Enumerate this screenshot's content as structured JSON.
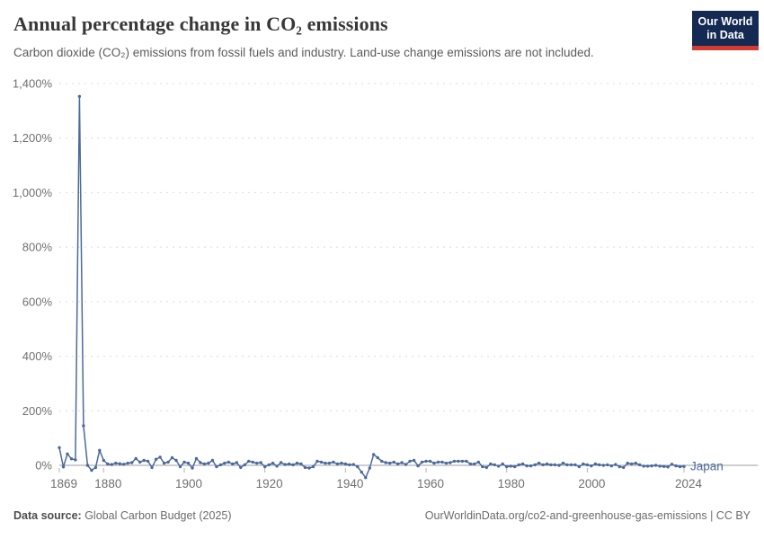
{
  "header": {
    "title": "Annual percentage change in CO₂ emissions",
    "subtitle": "Carbon dioxide (CO₂) emissions from fossil fuels and industry. Land-use change emissions are not included.",
    "logo": {
      "line1": "Our World",
      "line2": "in Data"
    }
  },
  "footer": {
    "source_label": "Data source:",
    "source_value": " Global Carbon Budget (2025)",
    "link": "OurWorldinData.org/co2-and-greenhouse-gas-emissions | CC BY"
  },
  "colors": {
    "series_blue": "#4c6a9c",
    "logo_navy": "#142a52",
    "logo_red": "#d13b32",
    "gridline": "#dcdcdc",
    "zero_axis": "#9e9e9e",
    "tick_text": "#707070"
  },
  "chart_data": {
    "type": "line",
    "title": "Annual percentage change in CO₂ emissions",
    "xlabel": "",
    "ylabel": "",
    "grid": true,
    "legend_position": "end-of-line",
    "ylim": [
      -60,
      1400
    ],
    "x_start": 1869,
    "x_end": 2024,
    "x_step": 1,
    "y_ticks": [
      {
        "value": 0,
        "label": "0%"
      },
      {
        "value": 200,
        "label": "200%"
      },
      {
        "value": 400,
        "label": "400%"
      },
      {
        "value": 600,
        "label": "600%"
      },
      {
        "value": 800,
        "label": "800%"
      },
      {
        "value": 1000,
        "label": "1,000%"
      },
      {
        "value": 1200,
        "label": "1,200%"
      },
      {
        "value": 1400,
        "label": "1,400%"
      }
    ],
    "x_ticks": [
      {
        "value": 1869,
        "label": "1869"
      },
      {
        "value": 1880,
        "label": "1880"
      },
      {
        "value": 1900,
        "label": "1900"
      },
      {
        "value": 1920,
        "label": "1920"
      },
      {
        "value": 1940,
        "label": "1940"
      },
      {
        "value": 1960,
        "label": "1960"
      },
      {
        "value": 1980,
        "label": "1980"
      },
      {
        "value": 2000,
        "label": "2000"
      },
      {
        "value": 2024,
        "label": "2024"
      }
    ],
    "series": [
      {
        "name": "Japan",
        "color": "#4c6a9c",
        "values": [
          65,
          -6,
          42,
          24,
          20,
          1353,
          145,
          0,
          -18,
          -8,
          55,
          18,
          5,
          3,
          8,
          6,
          4,
          8,
          10,
          25,
          12,
          18,
          15,
          -8,
          22,
          30,
          8,
          12,
          28,
          18,
          -5,
          12,
          8,
          -10,
          25,
          10,
          5,
          8,
          18,
          -5,
          2,
          8,
          12,
          5,
          10,
          -8,
          2,
          15,
          12,
          8,
          10,
          -5,
          2,
          8,
          -3,
          10,
          3,
          5,
          2,
          8,
          5,
          -8,
          -10,
          -5,
          15,
          12,
          8,
          8,
          12,
          5,
          8,
          5,
          2,
          3,
          -5,
          -25,
          -45,
          -10,
          40,
          28,
          15,
          10,
          8,
          12,
          5,
          10,
          3,
          15,
          18,
          -2,
          12,
          15,
          15,
          8,
          12,
          12,
          8,
          10,
          15,
          15,
          15,
          15,
          5,
          5,
          12,
          -5,
          -8,
          5,
          2,
          -3,
          5,
          -5,
          -3,
          -5,
          2,
          5,
          -2,
          -2,
          2,
          8,
          2,
          5,
          2,
          2,
          0,
          8,
          2,
          2,
          2,
          -5,
          5,
          2,
          -2,
          5,
          2,
          0,
          2,
          -2,
          3,
          -5,
          -8,
          8,
          5,
          8,
          2,
          -3,
          -3,
          -2,
          0,
          -3,
          -4,
          -6,
          4,
          -2,
          -5,
          -4
        ]
      }
    ]
  }
}
